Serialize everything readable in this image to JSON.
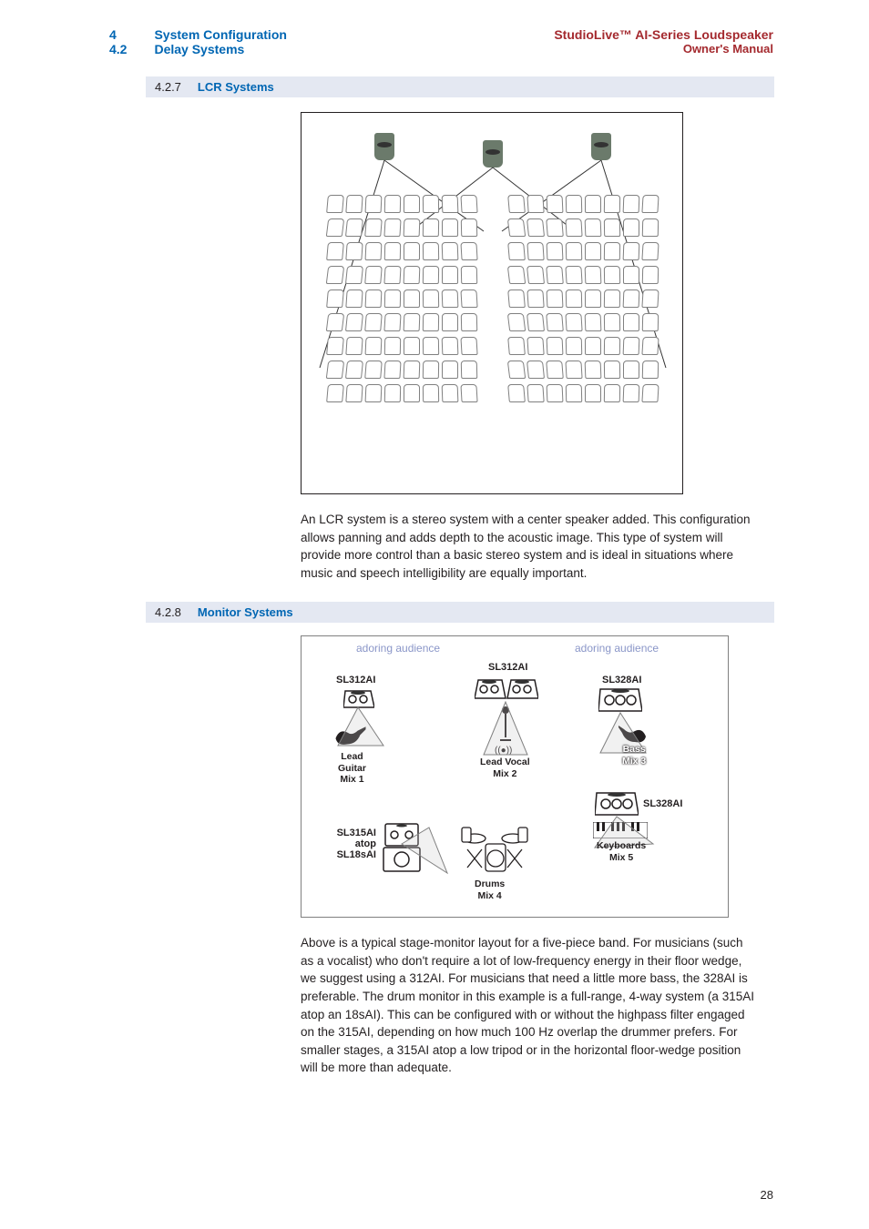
{
  "header": {
    "section_num": "4",
    "section_title": "System Configuration",
    "sub_num": "4.2",
    "sub_title": "Delay Systems",
    "brand_line1": "StudioLive™ AI-Series Loudspeaker",
    "brand_line2": "Owner's Manual"
  },
  "sections": {
    "s1": {
      "num": "4.2.7",
      "title": "LCR Systems"
    },
    "s2": {
      "num": "4.2.8",
      "title": "Monitor Systems"
    }
  },
  "lcr_text": "An LCR system is a stereo system with a center speaker added. This configuration allows panning and adds depth to the acoustic image. This type of system will provide more control than a basic stereo system and is ideal in situations where music and speech intelligibility are equally important.",
  "monitor": {
    "aud_left": "adoring audience",
    "aud_right": "adoring audience",
    "sl312_center": "SL312AI",
    "sl312_left": "SL312AI",
    "sl328_right": "SL328AI",
    "sl328_keys": "SL328AI",
    "sl315": "SL315AI\natop\nSL18sAI",
    "lead_guitar": "Lead\nGuitar\nMix 1",
    "lead_vocal": "Lead Vocal\nMix 2",
    "bass": "Bass\nMix 3",
    "drums": "Drums\nMix 4",
    "keyboards": "Keyboards\nMix 5"
  },
  "monitor_text": "Above is a typical stage-monitor layout for a five-piece band. For musicians (such as a vocalist) who don't require a lot of low-frequency energy in their floor wedge, we suggest using a 312AI. For musicians that need a little more bass, the 328AI is preferable. The drum monitor in this example is a full-range, 4-way system (a 315AI atop an 18sAI). This can be configured with or without the highpass filter engaged on the 315AI, depending on how much 100 Hz overlap the drummer prefers. For smaller stages, a 315AI atop a low tripod or in the horizontal floor-wedge position will be more than adequate.",
  "page": "28",
  "colors": {
    "blue": "#0066b3",
    "red": "#a4292e",
    "band": "#e4e8f2",
    "gray": "#808080",
    "text": "#231f20",
    "lightblue": "#8a96c8"
  }
}
